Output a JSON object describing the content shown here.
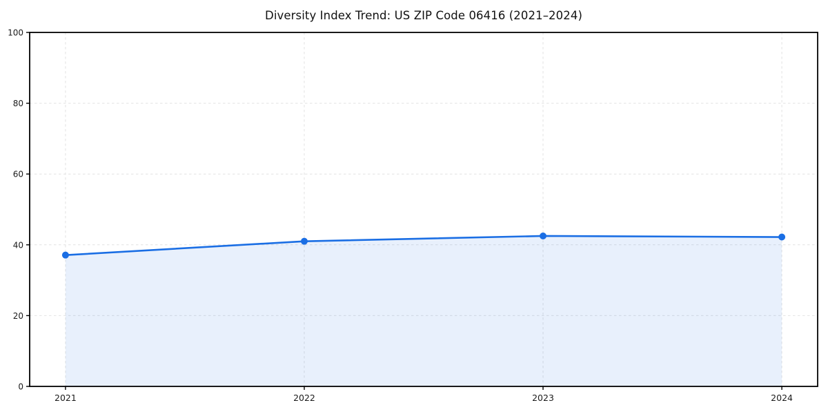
{
  "chart_data": {
    "type": "area",
    "title": "Diversity Index Trend: US ZIP Code 06416 (2021–2024)",
    "categories": [
      "2021",
      "2022",
      "2023",
      "2024"
    ],
    "values": [
      37.1,
      41.0,
      42.5,
      42.2
    ],
    "xlabel": "",
    "ylabel": "",
    "ylim": [
      0,
      100
    ],
    "yticks": [
      0,
      20,
      40,
      60,
      80,
      100
    ],
    "grid": "dashed",
    "legend": "none",
    "colors": {
      "line": "#1a6ee4",
      "marker": "#1a6ee4",
      "fill": "#1a6ee4",
      "fill_opacity": 0.1,
      "grid": "#e2e2e2",
      "axis": "#000000",
      "tick_text": "#1a1a1a",
      "background": "#ffffff"
    }
  }
}
